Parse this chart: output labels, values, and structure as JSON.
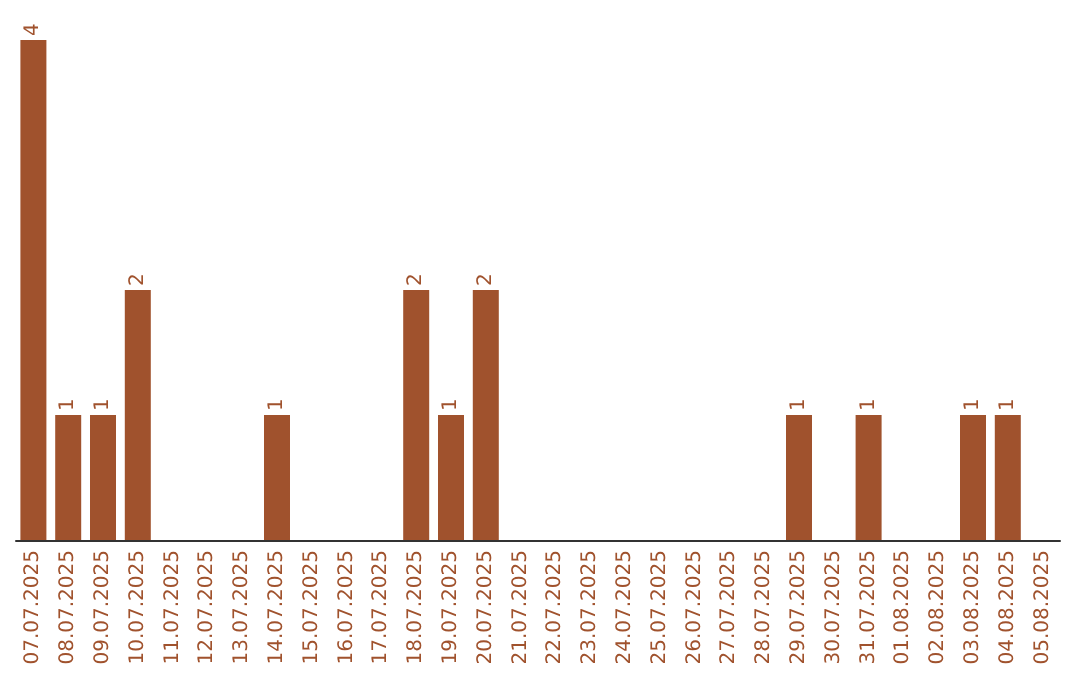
{
  "chart_data": {
    "type": "bar",
    "categories": [
      "07.07.2025",
      "08.07.2025",
      "09.07.2025",
      "10.07.2025",
      "11.07.2025",
      "12.07.2025",
      "13.07.2025",
      "14.07.2025",
      "15.07.2025",
      "16.07.2025",
      "17.07.2025",
      "18.07.2025",
      "19.07.2025",
      "20.07.2025",
      "21.07.2025",
      "22.07.2025",
      "23.07.2025",
      "24.07.2025",
      "25.07.2025",
      "26.07.2025",
      "27.07.2025",
      "28.07.2025",
      "29.07.2025",
      "30.07.2025",
      "31.07.2025",
      "01.08.2025",
      "02.08.2025",
      "03.08.2025",
      "04.08.2025",
      "05.08.2025"
    ],
    "values": [
      4,
      1,
      1,
      2,
      0,
      0,
      0,
      1,
      0,
      0,
      0,
      2,
      1,
      2,
      0,
      0,
      0,
      0,
      0,
      0,
      0,
      0,
      1,
      0,
      1,
      0,
      0,
      1,
      1,
      0
    ],
    "value_labels": [
      "4",
      "1",
      "1",
      "2",
      null,
      null,
      null,
      "1",
      null,
      null,
      null,
      "2",
      "1",
      "2",
      null,
      null,
      null,
      null,
      null,
      null,
      null,
      null,
      "1",
      null,
      "1",
      null,
      null,
      "1",
      "1",
      null
    ],
    "color": "#a0522d",
    "tick_labels": "x"
  }
}
